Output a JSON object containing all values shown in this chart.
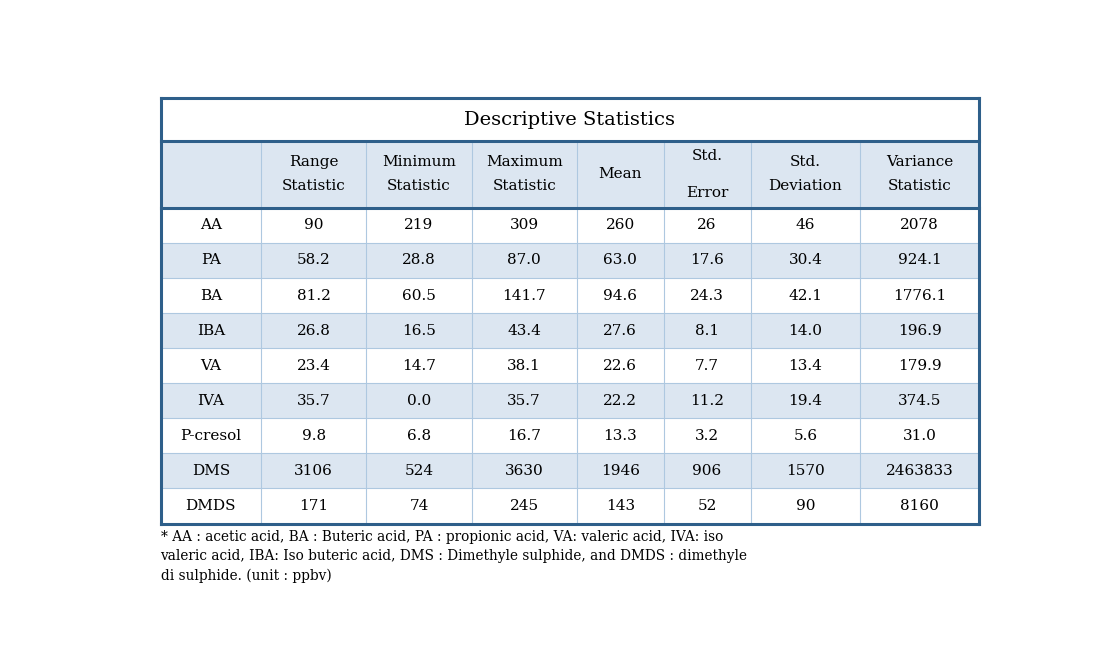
{
  "title": "Descriptive Statistics",
  "col_headers_line1": [
    "",
    "Range",
    "Minimum",
    "Maximum",
    "Mean",
    "Std.",
    "Std.",
    "Variance"
  ],
  "col_headers_line2": [
    "",
    "Statistic",
    "Statistic",
    "Statistic",
    "",
    "Error",
    "Deviation",
    "Statistic"
  ],
  "rows": [
    [
      "AA",
      "90",
      "219",
      "309",
      "260",
      "26",
      "46",
      "2078"
    ],
    [
      "PA",
      "58.2",
      "28.8",
      "87.0",
      "63.0",
      "17.6",
      "30.4",
      "924.1"
    ],
    [
      "BA",
      "81.2",
      "60.5",
      "141.7",
      "94.6",
      "24.3",
      "42.1",
      "1776.1"
    ],
    [
      "IBA",
      "26.8",
      "16.5",
      "43.4",
      "27.6",
      "8.1",
      "14.0",
      "196.9"
    ],
    [
      "VA",
      "23.4",
      "14.7",
      "38.1",
      "22.6",
      "7.7",
      "13.4",
      "179.9"
    ],
    [
      "IVA",
      "35.7",
      "0.0",
      "35.7",
      "22.2",
      "11.2",
      "19.4",
      "374.5"
    ],
    [
      "P-cresol",
      "9.8",
      "6.8",
      "16.7",
      "13.3",
      "3.2",
      "5.6",
      "31.0"
    ],
    [
      "DMS",
      "3106",
      "524",
      "3630",
      "1946",
      "906",
      "1570",
      "2463833"
    ],
    [
      "DMDS",
      "171",
      "74",
      "245",
      "143",
      "52",
      "90",
      "8160"
    ]
  ],
  "footnote_lines": [
    "* AA : acetic acid, BA : Buteric acid, PA : propionic acid, VA: valeric acid, IVA: iso",
    "valeric acid, IBA: Iso buteric acid, DMS : Dimethyle sulphide, and DMDS : dimethyle",
    "di sulphide. (unit : ppbv)"
  ],
  "header_bg": "#dce6f1",
  "row_bg_odd": "#ffffff",
  "row_bg_even": "#dce6f1",
  "outer_border_color": "#2e5f8a",
  "inner_line_color": "#aec8e0",
  "title_bg": "#ffffff",
  "text_color": "#000000",
  "col_widths_rel": [
    1.1,
    1.15,
    1.15,
    1.15,
    0.95,
    0.95,
    1.2,
    1.3
  ]
}
